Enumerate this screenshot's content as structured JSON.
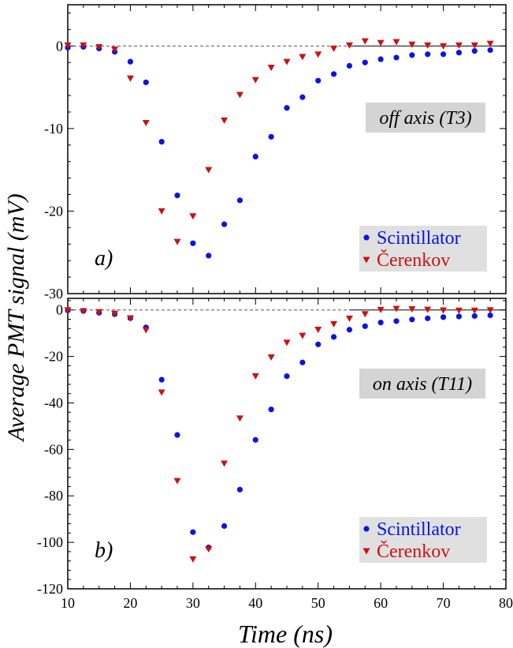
{
  "figure": {
    "ylabel": "Average PMT signal (mV)",
    "xlabel": "Time (ns)"
  },
  "colors": {
    "scintillator": "#0a14e6",
    "cerenkov": "#cc1111",
    "legend_bg": "#e0e0e0",
    "annotation_bg": "#d4d4d4"
  },
  "chart_data": [
    {
      "type": "scatter",
      "panel_label": "a)",
      "annotation": "off axis (T3)",
      "xlim": [
        10,
        80
      ],
      "ylim": [
        -30,
        5
      ],
      "x_ticks": [
        10,
        20,
        30,
        40,
        50,
        60,
        70,
        80
      ],
      "y_ticks": [
        0,
        -10,
        -20,
        -30
      ],
      "zero_line": "dashed",
      "legend": [
        "Scintillator",
        "Čerenkov"
      ],
      "legend_position": "bottom-right",
      "series": [
        {
          "name": "Scintillator",
          "marker": "circle",
          "x": [
            10,
            12.5,
            15,
            17.5,
            20,
            22.5,
            25,
            27.5,
            30,
            32.5,
            35,
            37.5,
            40,
            42.5,
            45,
            47.5,
            50,
            52.5,
            55,
            57.5,
            60,
            62.5,
            65,
            67.5,
            70,
            72.5,
            75,
            77.5
          ],
          "y": [
            -0.2,
            -0.1,
            -0.3,
            -0.7,
            -1.9,
            -4.4,
            -11.6,
            -18.1,
            -23.9,
            -25.4,
            -21.6,
            -18.7,
            -13.4,
            -11.0,
            -7.5,
            -6.2,
            -4.2,
            -3.4,
            -2.4,
            -2.0,
            -1.6,
            -1.4,
            -1.1,
            -1.0,
            -1.0,
            -0.8,
            -0.6,
            -0.5
          ]
        },
        {
          "name": "Čerenkov",
          "marker": "triangle-down",
          "x": [
            10,
            12.5,
            15,
            17.5,
            20,
            22.5,
            25,
            27.5,
            30,
            32.5,
            35,
            37.5,
            40,
            42.5,
            45,
            47.5,
            50,
            52.5,
            55,
            57.5,
            60,
            62.5,
            65,
            67.5,
            70,
            72.5,
            75,
            77.5
          ],
          "y": [
            0.1,
            0.1,
            -0.1,
            -0.4,
            -3.9,
            -9.3,
            -20.0,
            -23.7,
            -20.6,
            -15.0,
            -9.0,
            -5.9,
            -4.1,
            -2.6,
            -1.9,
            -1.3,
            -1.0,
            -0.3,
            0.1,
            0.6,
            0.4,
            0.5,
            0.2,
            0.1,
            0.0,
            0.1,
            0.1,
            0.3
          ]
        }
      ]
    },
    {
      "type": "scatter",
      "panel_label": "b)",
      "annotation": "on axis (T11)",
      "xlim": [
        10,
        80
      ],
      "ylim": [
        -120,
        5
      ],
      "x_ticks": [
        10,
        20,
        30,
        40,
        50,
        60,
        70,
        80
      ],
      "y_ticks": [
        0,
        -20,
        -40,
        -60,
        -80,
        -100,
        -120
      ],
      "zero_line": "dashed",
      "legend": [
        "Scintillator",
        "Čerenkov"
      ],
      "legend_position": "bottom-right",
      "series": [
        {
          "name": "Scintillator",
          "marker": "circle",
          "x": [
            10,
            12.5,
            15,
            17.5,
            20,
            22.5,
            25,
            27.5,
            30,
            32.5,
            35,
            37.5,
            40,
            42.5,
            45,
            47.5,
            50,
            52.5,
            55,
            57.5,
            60,
            62.5,
            65,
            67.5,
            70,
            72.5,
            75,
            77.5
          ],
          "y": [
            -0.2,
            -0.4,
            -1.2,
            -1.8,
            -3.5,
            -7.5,
            -30.0,
            -53.8,
            -95.6,
            -102.2,
            -93.0,
            -77.3,
            -55.9,
            -42.8,
            -28.5,
            -22.6,
            -14.8,
            -11.6,
            -8.5,
            -7.0,
            -5.4,
            -4.8,
            -4.1,
            -3.6,
            -3.1,
            -2.8,
            -2.6,
            -2.3
          ]
        },
        {
          "name": "Čerenkov",
          "marker": "triangle-down",
          "x": [
            10,
            12.5,
            15,
            17.5,
            20,
            22.5,
            25,
            27.5,
            30,
            32.5,
            35,
            37.5,
            40,
            42.5,
            45,
            47.5,
            50,
            52.5,
            55,
            57.5,
            60,
            62.5,
            65,
            67.5,
            70,
            72.5,
            75,
            77.5
          ],
          "y": [
            0.0,
            -0.4,
            -0.8,
            -1.5,
            -3.5,
            -8.6,
            -35.4,
            -73.5,
            -107.2,
            -102.9,
            -66.0,
            -46.6,
            -28.4,
            -20.3,
            -14.0,
            -11.0,
            -8.4,
            -6.0,
            -3.6,
            -1.7,
            0.1,
            0.6,
            0.4,
            0.2,
            -0.1,
            -0.2,
            -0.2,
            0.0
          ]
        }
      ]
    }
  ]
}
